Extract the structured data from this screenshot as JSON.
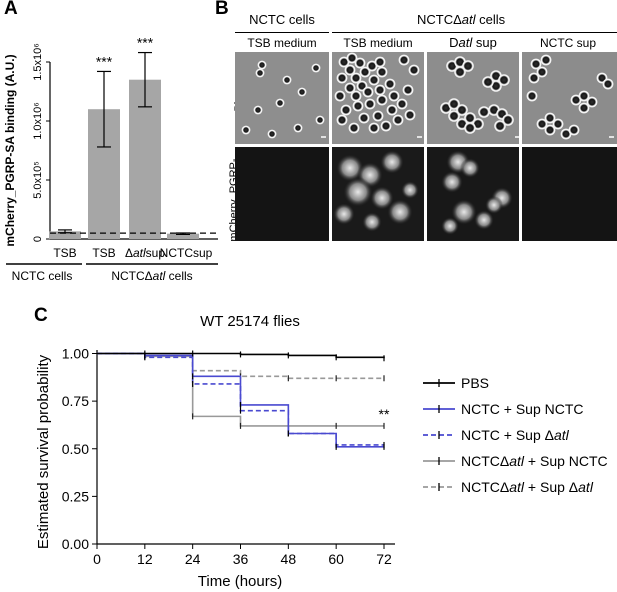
{
  "panels": {
    "a": {
      "letter": "A"
    },
    "b": {
      "letter": "B"
    },
    "c": {
      "letter": "C"
    }
  },
  "chart_data": [
    {
      "panel": "A",
      "type": "bar",
      "ylabel": "mCherry_PGRP-SA binding (A.U.)",
      "yticks": [
        {
          "value": 0,
          "label": "0"
        },
        {
          "value": 500000,
          "label": "5.0x10⁵"
        },
        {
          "value": 1000000,
          "label": "1.0x10⁶"
        },
        {
          "value": 1500000,
          "label": "1.5x10⁶"
        }
      ],
      "ylim": [
        0,
        1500000
      ],
      "categories": [
        "TSB",
        "TSB",
        "Δatlsup",
        "NCTCsup"
      ],
      "values": [
        65000,
        1100000,
        1350000,
        45000
      ],
      "error": [
        12000,
        320000,
        230000,
        6000
      ],
      "significance": [
        "",
        "***",
        "***",
        ""
      ],
      "threshold_line": 50000,
      "bar_color": "#a6a6a6",
      "groups": [
        {
          "label": "NCTC cells",
          "categories": [
            0
          ]
        },
        {
          "label": "NCTCΔatl cells",
          "categories": [
            1,
            2,
            3
          ]
        }
      ]
    },
    {
      "panel": "C",
      "type": "line",
      "title": "WT 25174 flies",
      "xlabel": "Time (hours)",
      "ylabel": "Estimated survival probability",
      "xlim": [
        0,
        76
      ],
      "ylim": [
        0,
        1.0
      ],
      "xticks": [
        0,
        12,
        24,
        36,
        48,
        60,
        72
      ],
      "yticks": [
        {
          "value": 0,
          "label": "0.00"
        },
        {
          "value": 0.25,
          "label": "0.25"
        },
        {
          "value": 0.5,
          "label": "0.50"
        },
        {
          "value": 0.75,
          "label": "0.75"
        },
        {
          "value": 1.0,
          "label": "1.00"
        }
      ],
      "annotation": {
        "text": "**",
        "x": 72,
        "y": 0.62
      },
      "series": [
        {
          "name": "PBS",
          "color": "#000000",
          "dash": "solid",
          "x": [
            0,
            12,
            24,
            36,
            48,
            60,
            72
          ],
          "y": [
            1.0,
            1.0,
            1.0,
            0.995,
            0.99,
            0.98,
            0.975
          ]
        },
        {
          "name": "NCTC + Sup NCTC",
          "color": "#4a4ad0",
          "dash": "solid",
          "x": [
            0,
            12,
            24,
            36,
            48,
            60,
            72
          ],
          "y": [
            1.0,
            0.99,
            0.88,
            0.73,
            0.58,
            0.51,
            0.51
          ]
        },
        {
          "name": "NCTC + Sup Δatl",
          "color": "#4a4ad0",
          "dash": "dashed",
          "x": [
            0,
            12,
            24,
            36,
            48,
            60,
            72
          ],
          "y": [
            1.0,
            0.98,
            0.84,
            0.7,
            0.58,
            0.52,
            0.52
          ]
        },
        {
          "name": "NCTCΔatl + Sup NCTC",
          "color": "#999999",
          "dash": "solid",
          "x": [
            0,
            12,
            24,
            36,
            48,
            60,
            72
          ],
          "y": [
            1.0,
            0.985,
            0.67,
            0.62,
            0.62,
            0.62,
            0.62
          ]
        },
        {
          "name": "NCTCΔatl + Sup Δatl",
          "color": "#999999",
          "dash": "dashed",
          "x": [
            0,
            12,
            24,
            36,
            48,
            60,
            72
          ],
          "y": [
            1.0,
            0.985,
            0.91,
            0.88,
            0.87,
            0.87,
            0.87
          ]
        }
      ],
      "legend_position": "right"
    }
  ],
  "micrographs": {
    "headers": {
      "nctc_cells": "NCTC cells",
      "nctc_atl_cells": "NCTCΔatl cells"
    },
    "columns": [
      "TSB medium",
      "TSB medium",
      "D atl sup",
      "NCTC sup"
    ],
    "rows": [
      "Phase",
      "mCherry_PGRP-SA"
    ]
  }
}
